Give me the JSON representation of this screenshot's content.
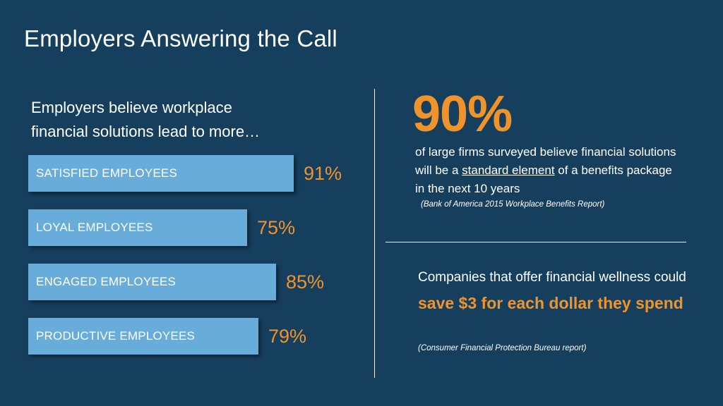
{
  "slide": {
    "title": "Employers Answering the Call",
    "intro_line1": "Employers believe workplace",
    "intro_line2": "financial solutions lead to more…"
  },
  "chart_data": {
    "type": "bar",
    "orientation": "horizontal",
    "title": "",
    "categories": [
      "SATISFIED EMPLOYEES",
      "LOYAL EMPLOYEES",
      "ENGAGED EMPLOYEES",
      "PRODUCTIVE EMPLOYEES"
    ],
    "values": [
      91,
      75,
      85,
      79
    ],
    "value_labels": [
      "91%",
      "75%",
      "85%",
      "79%"
    ],
    "unit": "%",
    "colors": {
      "bar": "#68acd9",
      "value_label": "#f0932b"
    }
  },
  "stat1": {
    "big_value": "90%",
    "desc_before": "of large firms surveyed believe financial solutions will be a ",
    "desc_underlined": "standard element",
    "desc_after": " of a benefits package in the next 10 years",
    "source": "(Bank of America 2015 Workplace Benefits Report)"
  },
  "stat2": {
    "text_before": "Companies that offer financial wellness could ",
    "highlight": "save $3 for each dollar they spend",
    "source": "(Consumer Financial Protection Bureau report)"
  },
  "colors": {
    "background": "#163f5e",
    "accent": "#f0932b",
    "bar": "#68acd9",
    "text": "#ffffff"
  }
}
